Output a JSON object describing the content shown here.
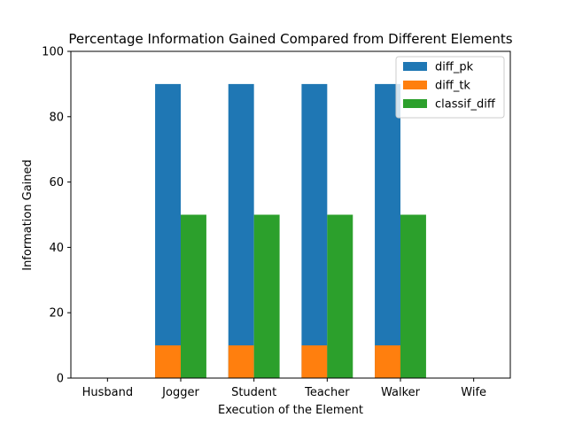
{
  "chart_data": {
    "type": "bar",
    "title": "Percentage Information Gained Compared from Different Elements",
    "xlabel": "Execution of the Element",
    "ylabel": "Information Gained",
    "categories": [
      "Husband",
      "Jogger",
      "Student",
      "Teacher",
      "Walker",
      "Wife"
    ],
    "ylim": [
      0,
      100
    ],
    "yticks": [
      0,
      20,
      40,
      60,
      80,
      100
    ],
    "series": [
      {
        "name": "diff_pk",
        "color": "#1f77b4",
        "values": [
          0,
          90,
          90,
          90,
          90,
          0
        ]
      },
      {
        "name": "diff_tk",
        "color": "#ff7f0e",
        "values": [
          0,
          10,
          10,
          10,
          10,
          0
        ]
      },
      {
        "name": "classif_diff",
        "color": "#2ca02c",
        "values": [
          0,
          50,
          50,
          50,
          50,
          0
        ]
      }
    ],
    "legend_position": "top-right",
    "grid": false
  }
}
